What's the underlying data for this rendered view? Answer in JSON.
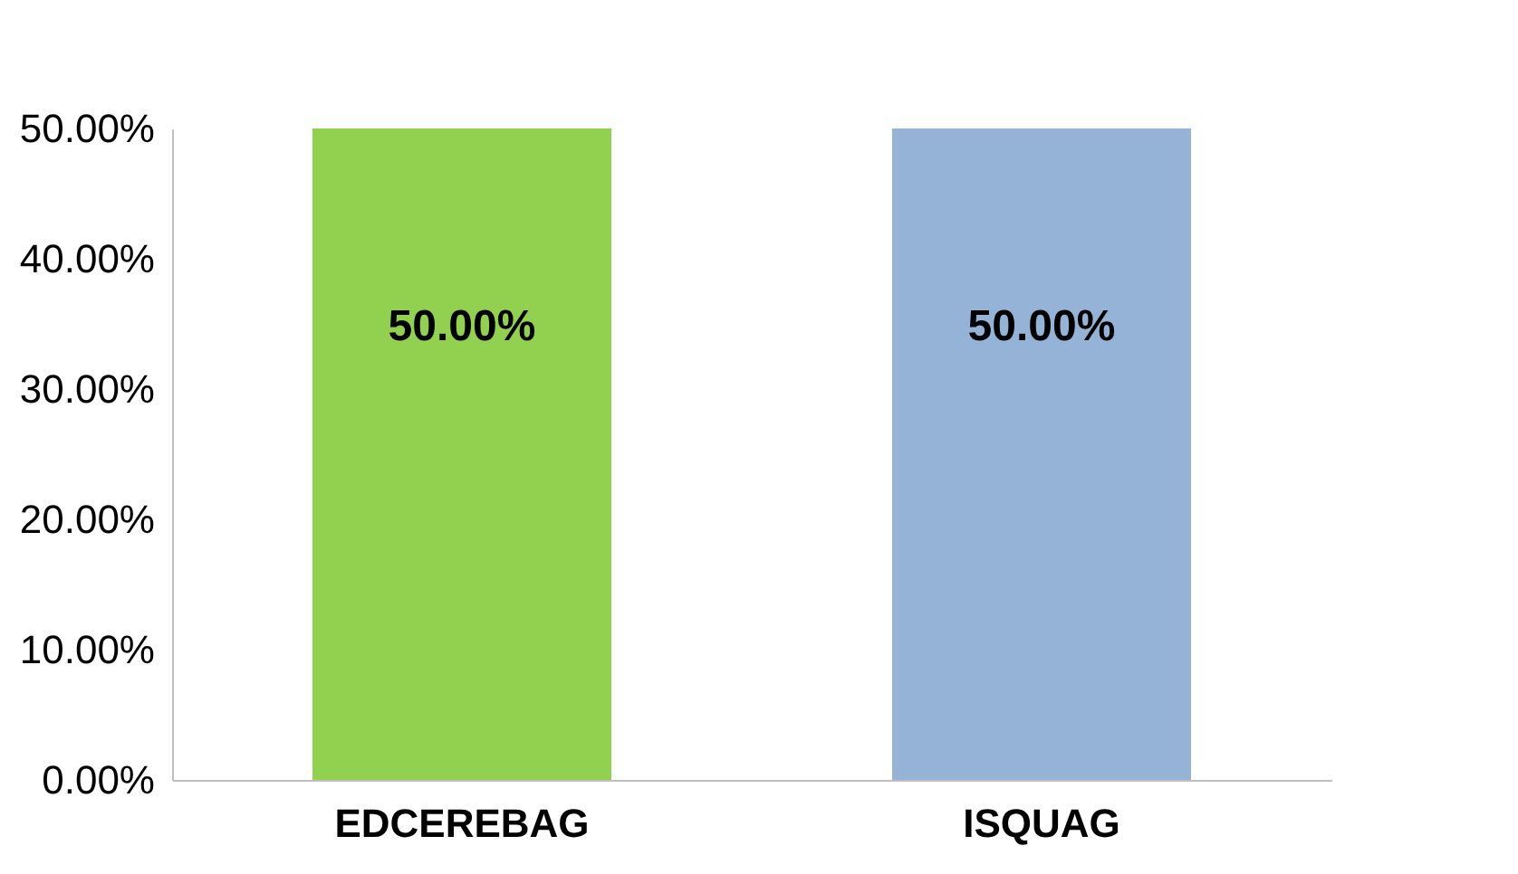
{
  "chart_data": {
    "type": "bar",
    "categories": [
      "EDCEREBAG",
      "ISQUAG"
    ],
    "values": [
      50,
      50
    ],
    "colors": [
      "#92d050",
      "#95b3d7"
    ],
    "value_labels": [
      "50.00%",
      "50.00%"
    ],
    "ylim": [
      0,
      50
    ],
    "yticks": [
      {
        "value": 0,
        "label": "0.00%"
      },
      {
        "value": 10,
        "label": "10.00%"
      },
      {
        "value": 20,
        "label": "20.00%"
      },
      {
        "value": 30,
        "label": "30.00%"
      },
      {
        "value": 40,
        "label": "40.00%"
      },
      {
        "value": 50,
        "label": "50.00%"
      }
    ],
    "grid": false,
    "legend": false
  }
}
